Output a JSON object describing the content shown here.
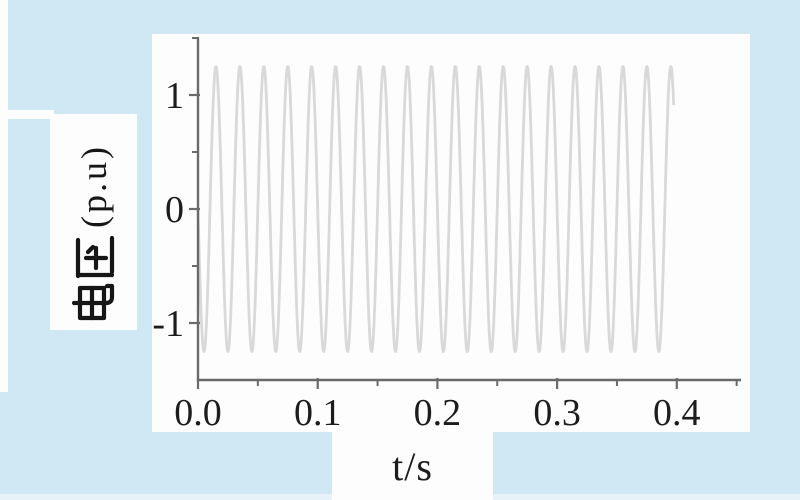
{
  "page": {
    "background_color": "#d0e8f3",
    "panel_color": "#fdfdfd",
    "bottom_edge_color": "#e6f2f8"
  },
  "chart_data": {
    "type": "line",
    "title": "",
    "xlabel": "t/s",
    "ylabel": "电压（p.u）",
    "ylabel_cjk": "电压",
    "ylabel_unit": "(p.u)",
    "xlim": [
      0,
      0.452
    ],
    "ylim": [
      -1.5,
      1.53
    ],
    "x_major_ticks": [
      0,
      0.1,
      0.2,
      0.3,
      0.4
    ],
    "x_tick_labels": [
      "0.0",
      "0.1",
      "0.2",
      "0.3",
      "0.4"
    ],
    "x_minor_ticks": [
      0.05,
      0.15,
      0.25,
      0.35,
      0.45
    ],
    "y_major_ticks": [
      1,
      0,
      -1
    ],
    "y_tick_labels": [
      "1",
      "0",
      "-1"
    ],
    "y_minor_ticks": [
      1.5,
      0.5,
      -0.5
    ],
    "grid": false,
    "legend": "none",
    "axis_color": "#6a6a6a",
    "tick_label_color": "#1c1c1c",
    "series": [
      {
        "name": "电压",
        "waveform": "sine",
        "amplitude_pu": 1.25,
        "frequency_hz": 50,
        "phase_rad": 3.14159,
        "t_start_s": 0,
        "t_end_s": 0.3975,
        "cycles_shown": 20,
        "color": "#d9d9d9"
      }
    ]
  }
}
